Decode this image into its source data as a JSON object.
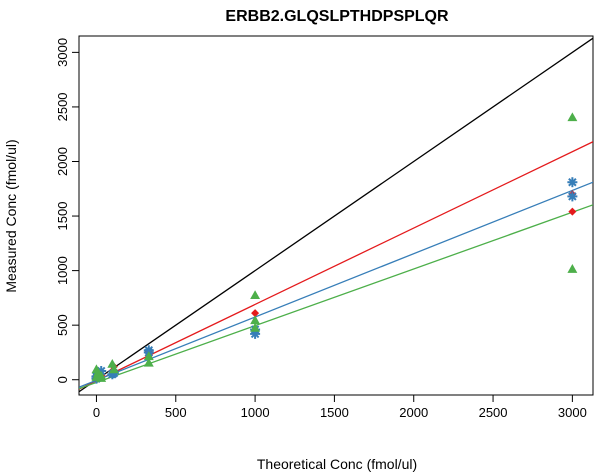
{
  "chart_data": {
    "type": "scatter",
    "title": "ERBB2.GLQSLPTHDPSPLQR",
    "xlabel": "Theoretical Conc (fmol/ul)",
    "ylabel": "Measured Conc (fmol/ul)",
    "xlim": [
      -110,
      3130
    ],
    "ylim": [
      -140,
      3150
    ],
    "xticks": [
      0,
      500,
      1000,
      1500,
      2000,
      2500,
      3000
    ],
    "yticks": [
      0,
      500,
      1000,
      1500,
      2000,
      2500,
      3000
    ],
    "grid": false,
    "series": [
      {
        "color": "#e41a1c",
        "marker": "diamond",
        "points": [
          [
            0,
            20
          ],
          [
            0,
            40
          ],
          [
            10,
            50
          ],
          [
            30,
            40
          ],
          [
            100,
            80
          ],
          [
            110,
            120
          ],
          [
            330,
            220
          ],
          [
            330,
            260
          ],
          [
            1000,
            610
          ],
          [
            3000,
            1540
          ],
          [
            3000,
            1700
          ]
        ],
        "fit": {
          "slope": 0.7,
          "intercept": -10
        }
      },
      {
        "color": "#377eb8",
        "marker": "asterisk",
        "points": [
          [
            0,
            10
          ],
          [
            0,
            30
          ],
          [
            10,
            40
          ],
          [
            30,
            80
          ],
          [
            100,
            50
          ],
          [
            110,
            60
          ],
          [
            330,
            270
          ],
          [
            330,
            250
          ],
          [
            1000,
            420
          ],
          [
            1000,
            460
          ],
          [
            3000,
            1680
          ],
          [
            3000,
            1810
          ]
        ],
        "fit": {
          "slope": 0.58,
          "intercept": -5
        }
      },
      {
        "color": "#4daf4a",
        "marker": "triangle",
        "points": [
          [
            0,
            90
          ],
          [
            0,
            20
          ],
          [
            10,
            60
          ],
          [
            30,
            10
          ],
          [
            30,
            30
          ],
          [
            100,
            140
          ],
          [
            110,
            90
          ],
          [
            330,
            150
          ],
          [
            330,
            210
          ],
          [
            1000,
            770
          ],
          [
            1000,
            540
          ],
          [
            1000,
            470
          ],
          [
            3000,
            2400
          ],
          [
            3000,
            1010
          ]
        ],
        "fit": {
          "slope": 0.52,
          "intercept": -25
        }
      }
    ],
    "reference_line": {
      "color": "#000000",
      "slope": 1,
      "intercept": 0
    }
  }
}
